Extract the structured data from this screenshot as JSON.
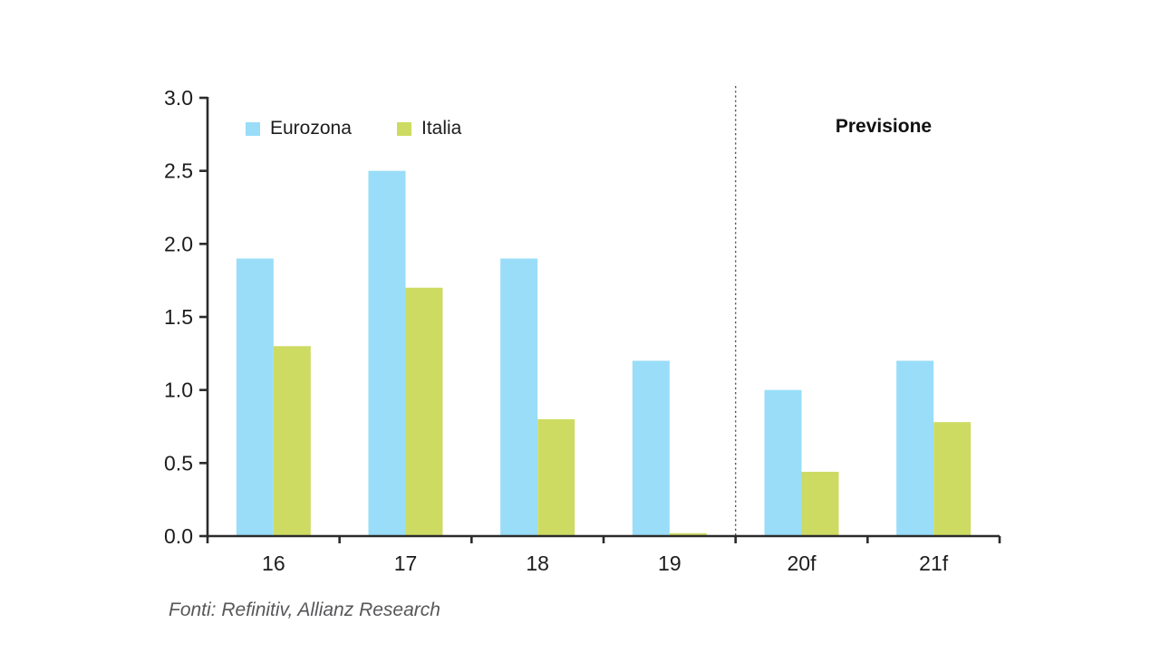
{
  "chart": {
    "legend": [
      {
        "label": "Eurozona",
        "color": "#99DDF8"
      },
      {
        "label": "Italia",
        "color": "#CDDB62"
      }
    ],
    "forecast_label": "Previsione",
    "source_note": "Fonti: Refinitiv, Allianz Research"
  },
  "chart_data": {
    "type": "bar",
    "categories": [
      "16",
      "17",
      "18",
      "19",
      "20f",
      "21f"
    ],
    "series": [
      {
        "name": "Eurozona",
        "color": "#99DDF8",
        "values": [
          1.9,
          2.5,
          1.9,
          1.2,
          1.0,
          1.2
        ]
      },
      {
        "name": "Italia",
        "color": "#CDDB62",
        "values": [
          1.3,
          1.7,
          0.8,
          0.02,
          0.44,
          0.78
        ]
      }
    ],
    "title": "",
    "xlabel": "",
    "ylabel": "",
    "ylim": [
      0,
      3
    ],
    "ytick_step": 0.5,
    "ytick_labels": [
      "0.0",
      "0.5",
      "1.0",
      "1.5",
      "2.0",
      "2.5",
      "3.0"
    ],
    "grid": false,
    "legend_position": "top-left-inside",
    "forecast_divider_after_category": "19",
    "forecast_region_label": "Previsione",
    "annotations": [
      "Previsione"
    ]
  },
  "colors": {
    "axis": "#2b2b2b",
    "tick_text": "#1d1d1d",
    "divider": "#595959",
    "background": "#ffffff",
    "source_text": "#57575a"
  }
}
